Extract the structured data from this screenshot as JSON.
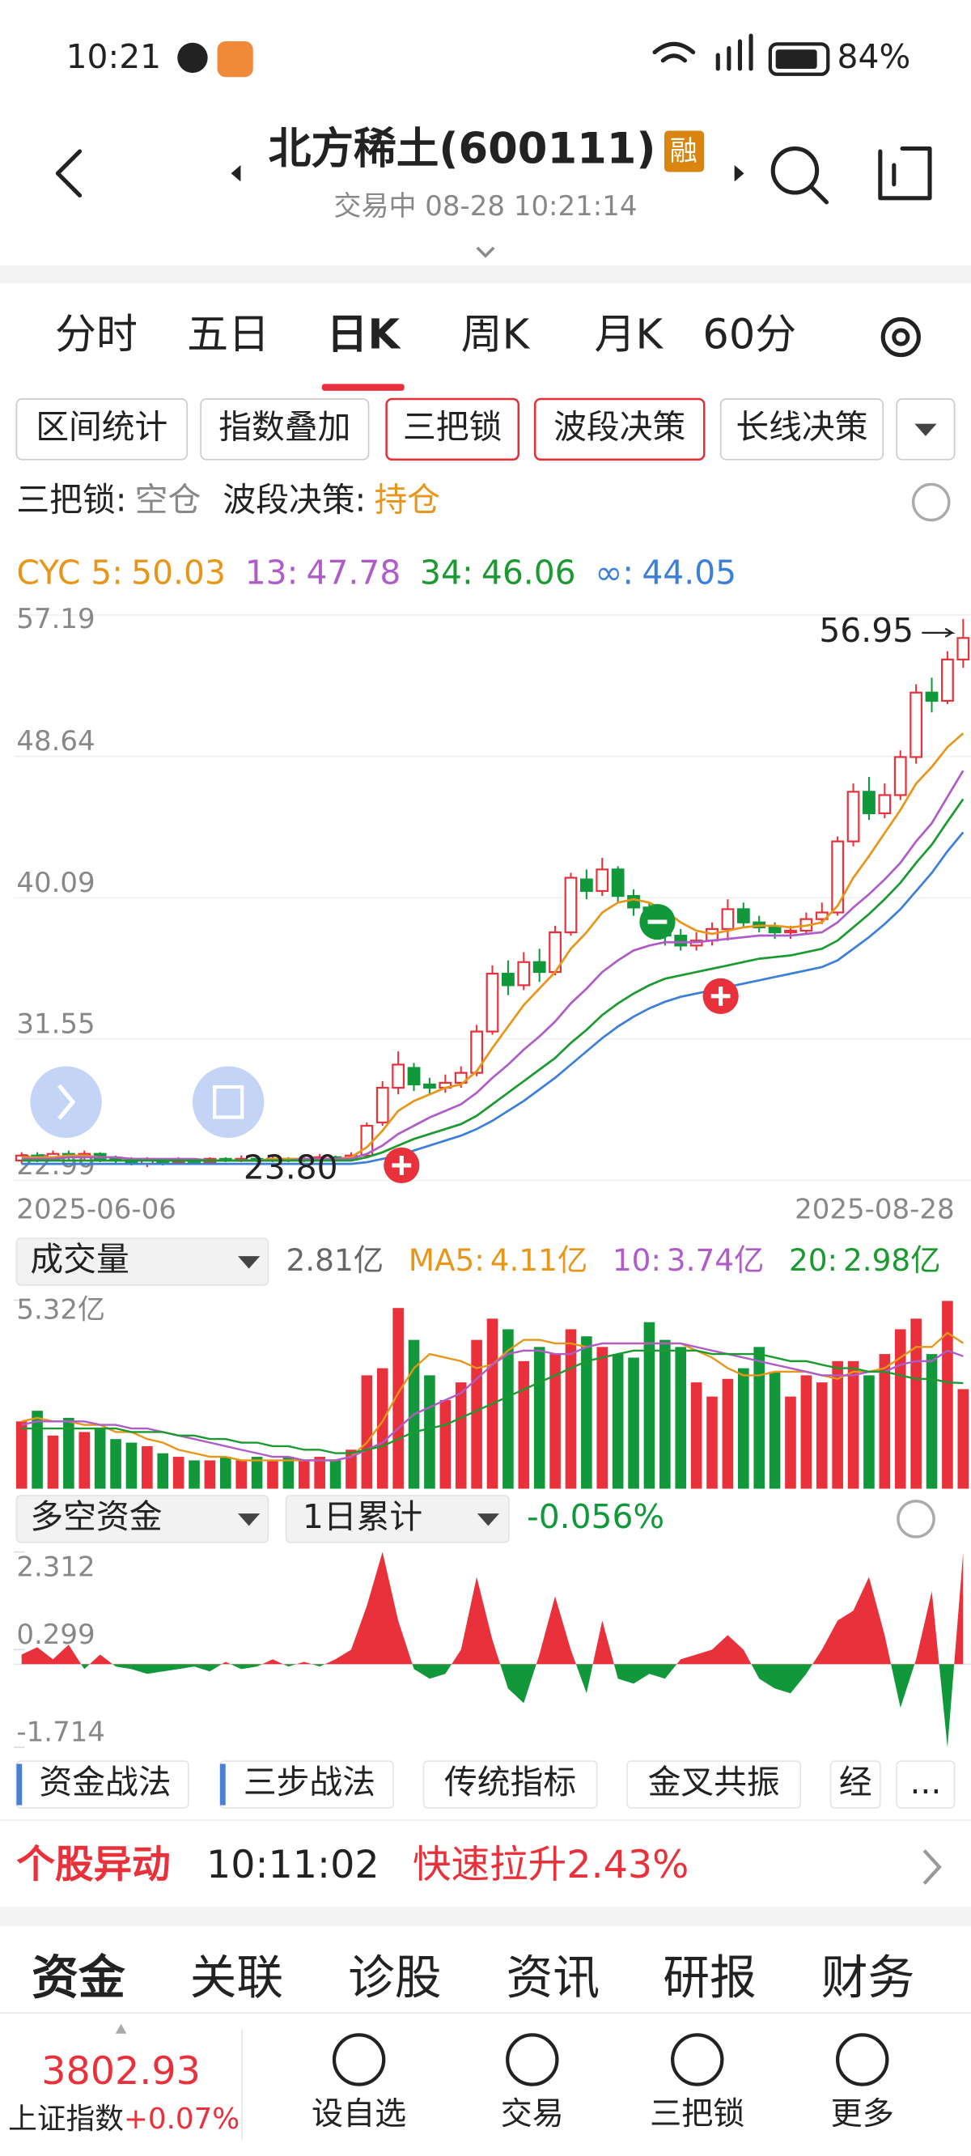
{
  "status_bar": {
    "time": "10:21",
    "battery": "84%"
  },
  "header": {
    "title": "北方稀土(600111)",
    "badge": "融",
    "subtitle": "交易中 08-28 10:21:14"
  },
  "period_tabs": [
    "分时",
    "五日",
    "日K",
    "周K",
    "月K",
    "60分"
  ],
  "active_period": 2,
  "tool_buttons": [
    {
      "label": "区间统计",
      "highlighted": false
    },
    {
      "label": "指数叠加",
      "highlighted": false
    },
    {
      "label": "三把锁",
      "highlighted": true
    },
    {
      "label": "波段决策",
      "highlighted": true
    },
    {
      "label": "长线决策",
      "highlighted": false
    }
  ],
  "signals": [
    {
      "label": "三把锁:",
      "value": "空仓"
    },
    {
      "label": "波段决策:",
      "value": "持仓"
    }
  ],
  "chart_data": [
    {
      "type": "candlestick",
      "categories": [
        "2025-06-06",
        null,
        null,
        null,
        null,
        null,
        null,
        null,
        null,
        null,
        null,
        null,
        null,
        null,
        null,
        null,
        null,
        null,
        null,
        null,
        null,
        null,
        null,
        null,
        null,
        null,
        null,
        null,
        null,
        null,
        null,
        null,
        null,
        null,
        null,
        null,
        null,
        null,
        null,
        null,
        null,
        null,
        null,
        null,
        null,
        null,
        null,
        null,
        null,
        null,
        null,
        null,
        null,
        null,
        null,
        null,
        null,
        null,
        null,
        null,
        "2025-08-28"
      ],
      "candles": [
        [
          24.2,
          24.5,
          24.7,
          24.0
        ],
        [
          24.5,
          24.3,
          24.7,
          24.1
        ],
        [
          24.3,
          24.6,
          24.8,
          24.2
        ],
        [
          24.6,
          24.4,
          24.8,
          24.2
        ],
        [
          24.4,
          24.6,
          24.8,
          24.2
        ],
        [
          24.6,
          24.3,
          24.7,
          24.1
        ],
        [
          24.3,
          24.2,
          24.5,
          24.0
        ],
        [
          24.2,
          24.0,
          24.4,
          23.9
        ],
        [
          24.0,
          24.2,
          24.4,
          23.8
        ],
        [
          24.2,
          24.1,
          24.3,
          23.9
        ],
        [
          24.1,
          24.2,
          24.4,
          24.0
        ],
        [
          24.2,
          24.1,
          24.3,
          24.0
        ],
        [
          24.1,
          24.3,
          24.4,
          24.0
        ],
        [
          24.3,
          24.2,
          24.4,
          24.1
        ],
        [
          24.2,
          24.3,
          24.5,
          24.1
        ],
        [
          24.3,
          24.2,
          24.4,
          24.1
        ],
        [
          24.2,
          24.3,
          24.5,
          24.1
        ],
        [
          24.3,
          24.2,
          24.4,
          24.1
        ],
        [
          24.2,
          24.3,
          24.5,
          24.1
        ],
        [
          24.3,
          24.4,
          24.6,
          24.2
        ],
        [
          24.4,
          24.3,
          24.5,
          24.2
        ],
        [
          24.3,
          24.5,
          24.7,
          24.2
        ],
        [
          24.5,
          26.3,
          26.5,
          24.4
        ],
        [
          26.5,
          28.6,
          29.0,
          26.3
        ],
        [
          28.6,
          30.0,
          30.8,
          28.2
        ],
        [
          29.8,
          28.8,
          30.1,
          28.4
        ],
        [
          28.8,
          28.6,
          29.2,
          28.2
        ],
        [
          28.6,
          28.9,
          29.4,
          28.3
        ],
        [
          28.9,
          29.5,
          29.9,
          28.6
        ],
        [
          29.5,
          32.0,
          32.4,
          29.3
        ],
        [
          32.0,
          35.5,
          36.0,
          31.8
        ],
        [
          35.5,
          34.8,
          36.3,
          34.2
        ],
        [
          34.8,
          36.2,
          36.8,
          34.5
        ],
        [
          36.2,
          35.6,
          37.0,
          35.0
        ],
        [
          35.6,
          38.0,
          38.4,
          35.4
        ],
        [
          38.0,
          41.3,
          41.6,
          37.8
        ],
        [
          41.2,
          40.5,
          41.8,
          40.0
        ],
        [
          40.5,
          41.8,
          42.5,
          40.2
        ],
        [
          41.8,
          40.2,
          42.0,
          39.8
        ],
        [
          40.2,
          39.5,
          40.6,
          39.0
        ],
        [
          39.5,
          38.6,
          39.8,
          38.2
        ],
        [
          38.6,
          37.8,
          39.0,
          37.2
        ],
        [
          37.8,
          37.2,
          38.2,
          36.9
        ],
        [
          37.2,
          37.5,
          38.0,
          36.9
        ],
        [
          37.5,
          38.2,
          38.6,
          37.2
        ],
        [
          38.2,
          39.4,
          40.0,
          37.5
        ],
        [
          39.4,
          38.6,
          39.8,
          38.3
        ],
        [
          38.6,
          38.3,
          39.0,
          38.0
        ],
        [
          38.3,
          38.0,
          38.6,
          37.6
        ],
        [
          38.0,
          38.1,
          38.4,
          37.6
        ],
        [
          38.1,
          38.8,
          39.2,
          37.9
        ],
        [
          38.8,
          39.2,
          39.8,
          38.5
        ],
        [
          39.2,
          43.5,
          43.8,
          39.0
        ],
        [
          43.5,
          46.5,
          47.0,
          43.2
        ],
        [
          46.5,
          45.2,
          47.4,
          44.8
        ],
        [
          45.2,
          46.3,
          47.0,
          44.9
        ],
        [
          46.3,
          48.6,
          49.0,
          46.0
        ],
        [
          48.6,
          52.5,
          53.0,
          48.2
        ],
        [
          52.5,
          52.0,
          53.4,
          51.3
        ],
        [
          52.0,
          54.5,
          55.0,
          51.8
        ],
        [
          54.5,
          55.8,
          56.95,
          54.0
        ]
      ],
      "low_label": "23.80",
      "up_color": "#e8313a",
      "down_color": "#11983a",
      "ylim": [
        22.99,
        57.19
      ],
      "yticks": [
        22.99,
        31.55,
        40.09,
        48.64,
        57.19
      ],
      "grid": true,
      "lines": [
        {
          "name": "CYC 5:",
          "color": "#e8961a",
          "values": [
            24.4,
            24.4,
            24.4,
            24.5,
            24.5,
            24.4,
            24.4,
            24.3,
            24.3,
            24.2,
            24.2,
            24.2,
            24.2,
            24.2,
            24.2,
            24.2,
            24.3,
            24.3,
            24.3,
            24.3,
            24.3,
            24.4,
            25.0,
            26.0,
            27.2,
            27.8,
            28.2,
            28.6,
            28.8,
            29.6,
            31.0,
            32.3,
            33.6,
            34.6,
            35.6,
            37.0,
            38.0,
            39.2,
            39.8,
            40.0,
            39.8,
            39.3,
            38.6,
            38.1,
            37.9,
            38.1,
            38.3,
            38.4,
            38.4,
            38.3,
            38.4,
            38.6,
            39.6,
            41.3,
            42.6,
            44.0,
            45.4,
            47.0,
            48.0,
            49.2,
            50.03
          ]
        },
        {
          "name": "13:",
          "color": "#b05cc8",
          "values": [
            24.3,
            24.3,
            24.3,
            24.4,
            24.4,
            24.4,
            24.4,
            24.3,
            24.3,
            24.3,
            24.3,
            24.3,
            24.2,
            24.2,
            24.2,
            24.2,
            24.2,
            24.2,
            24.3,
            24.3,
            24.3,
            24.3,
            24.6,
            25.1,
            25.8,
            26.3,
            26.8,
            27.2,
            27.6,
            28.3,
            29.2,
            30.0,
            30.9,
            31.7,
            32.6,
            33.7,
            34.6,
            35.6,
            36.3,
            36.9,
            37.2,
            37.4,
            37.4,
            37.4,
            37.5,
            37.6,
            37.7,
            37.8,
            37.8,
            37.8,
            37.9,
            38.0,
            38.6,
            39.5,
            40.3,
            41.2,
            42.2,
            43.5,
            44.6,
            46.2,
            47.78
          ]
        },
        {
          "name": "34:",
          "color": "#1a9a30",
          "values": [
            24.2,
            24.2,
            24.2,
            24.2,
            24.2,
            24.2,
            24.2,
            24.2,
            24.2,
            24.2,
            24.2,
            24.2,
            24.2,
            24.2,
            24.2,
            24.2,
            24.2,
            24.2,
            24.2,
            24.2,
            24.2,
            24.2,
            24.4,
            24.7,
            25.1,
            25.5,
            25.8,
            26.1,
            26.4,
            26.9,
            27.6,
            28.3,
            29.0,
            29.7,
            30.4,
            31.3,
            32.1,
            33.0,
            33.7,
            34.3,
            34.8,
            35.2,
            35.4,
            35.6,
            35.8,
            36.0,
            36.2,
            36.4,
            36.5,
            36.6,
            36.8,
            37.0,
            37.5,
            38.3,
            39.1,
            40.0,
            41.0,
            42.2,
            43.3,
            44.7,
            46.06
          ]
        },
        {
          "name": "∞:",
          "color": "#3b7fd9",
          "values": [
            24.0,
            24.0,
            24.0,
            24.0,
            24.0,
            24.0,
            24.0,
            24.0,
            24.0,
            24.0,
            24.0,
            24.0,
            24.0,
            24.0,
            24.0,
            24.0,
            24.0,
            24.0,
            24.0,
            24.0,
            24.0,
            24.0,
            24.1,
            24.3,
            24.5,
            24.8,
            25.1,
            25.4,
            25.7,
            26.1,
            26.6,
            27.2,
            27.8,
            28.5,
            29.2,
            30.0,
            30.8,
            31.6,
            32.3,
            32.9,
            33.4,
            33.8,
            34.1,
            34.3,
            34.5,
            34.7,
            34.9,
            35.1,
            35.3,
            35.5,
            35.7,
            35.9,
            36.3,
            37.0,
            37.7,
            38.5,
            39.4,
            40.5,
            41.6,
            42.9,
            44.05
          ]
        }
      ]
    },
    {
      "type": "bar",
      "title": "成交量",
      "values": [
        1.9,
        2.2,
        1.5,
        2.0,
        1.6,
        1.7,
        1.4,
        1.3,
        1.2,
        1.0,
        0.9,
        0.8,
        0.8,
        0.9,
        0.8,
        0.9,
        0.8,
        0.9,
        0.8,
        0.9,
        0.8,
        1.1,
        3.2,
        3.4,
        5.1,
        4.2,
        3.2,
        2.5,
        3.0,
        4.2,
        4.8,
        4.5,
        3.6,
        4.0,
        3.8,
        4.5,
        4.3,
        4.0,
        3.8,
        3.7,
        4.7,
        4.2,
        4.0,
        3.0,
        2.6,
        3.1,
        3.4,
        4.0,
        3.3,
        2.6,
        3.2,
        3.0,
        3.6,
        3.6,
        3.2,
        3.8,
        4.5,
        4.8,
        3.8,
        5.3,
        2.81
      ],
      "current_label": "2.81亿",
      "ylim": [
        0,
        5.32
      ],
      "yticks": [
        {
          "value": 5.32,
          "label": "5.32亿"
        }
      ],
      "series": [
        {
          "name": "MA5:",
          "color": "#e8961a",
          "latest_label": "4.11亿",
          "values": [
            1.9,
            2.0,
            1.9,
            1.9,
            1.8,
            1.8,
            1.6,
            1.6,
            1.4,
            1.3,
            1.1,
            1.0,
            0.9,
            0.9,
            0.8,
            0.8,
            0.8,
            0.8,
            0.8,
            0.8,
            0.8,
            0.9,
            1.3,
            1.9,
            2.7,
            3.4,
            3.8,
            3.7,
            3.6,
            3.4,
            3.5,
            3.9,
            4.2,
            4.2,
            4.1,
            4.1,
            4.0,
            4.1,
            4.1,
            4.1,
            4.1,
            4.1,
            4.1,
            3.9,
            3.7,
            3.4,
            3.2,
            3.2,
            3.3,
            3.3,
            3.3,
            3.2,
            3.1,
            3.3,
            3.3,
            3.4,
            3.7,
            4.0,
            4.0,
            4.4,
            4.11
          ]
        },
        {
          "name": "10:",
          "color": "#b05cc8",
          "latest_label": "3.74亿",
          "values": [
            1.8,
            1.9,
            1.9,
            1.9,
            1.9,
            1.8,
            1.8,
            1.7,
            1.7,
            1.6,
            1.5,
            1.4,
            1.3,
            1.2,
            1.1,
            1.0,
            0.9,
            0.9,
            0.8,
            0.8,
            0.8,
            0.9,
            1.1,
            1.3,
            1.7,
            2.1,
            2.3,
            2.5,
            2.7,
            3.1,
            3.5,
            3.8,
            3.9,
            3.9,
            3.8,
            3.8,
            4.0,
            4.1,
            4.1,
            4.1,
            4.1,
            4.1,
            4.1,
            4.0,
            3.9,
            3.8,
            3.7,
            3.6,
            3.5,
            3.4,
            3.3,
            3.2,
            3.2,
            3.2,
            3.3,
            3.3,
            3.5,
            3.6,
            3.6,
            3.9,
            3.74
          ]
        },
        {
          "name": "20:",
          "color": "#1a9a30",
          "latest_label": "2.98亿",
          "values": [
            1.7,
            1.7,
            1.7,
            1.7,
            1.7,
            1.7,
            1.7,
            1.6,
            1.6,
            1.6,
            1.5,
            1.5,
            1.4,
            1.4,
            1.3,
            1.3,
            1.2,
            1.2,
            1.1,
            1.1,
            1.0,
            1.0,
            1.1,
            1.2,
            1.4,
            1.6,
            1.7,
            1.8,
            2.0,
            2.2,
            2.4,
            2.6,
            2.8,
            3.0,
            3.2,
            3.4,
            3.6,
            3.7,
            3.8,
            3.9,
            3.9,
            3.9,
            3.9,
            3.9,
            3.8,
            3.8,
            3.8,
            3.8,
            3.7,
            3.6,
            3.6,
            3.5,
            3.4,
            3.4,
            3.3,
            3.3,
            3.2,
            3.1,
            3.1,
            3.0,
            2.98
          ]
        }
      ]
    },
    {
      "type": "area",
      "title": "多空资金",
      "mode": "1日累计",
      "change_label": "-0.056%",
      "values": [
        0.2,
        0.35,
        0.1,
        0.4,
        -0.1,
        0.2,
        -0.05,
        -0.1,
        -0.2,
        -0.15,
        -0.1,
        -0.05,
        -0.15,
        0.05,
        -0.1,
        -0.05,
        0.1,
        -0.05,
        0.05,
        -0.05,
        0.1,
        0.3,
        1.2,
        2.312,
        0.9,
        -0.1,
        -0.3,
        -0.2,
        0.3,
        1.8,
        0.5,
        -0.5,
        -0.8,
        0.2,
        1.4,
        0.3,
        -0.6,
        0.9,
        -0.3,
        -0.4,
        -0.2,
        -0.3,
        0.1,
        0.2,
        0.3,
        0.6,
        0.3,
        -0.3,
        -0.5,
        -0.6,
        -0.2,
        0.3,
        0.9,
        1.1,
        1.8,
        0.6,
        -0.9,
        0.1,
        1.5,
        -1.714,
        2.3
      ],
      "positive_color": "#e8313a",
      "negative_color": "#11983a",
      "ylim": [
        -1.714,
        2.312
      ],
      "yticks": [
        2.312,
        0.299,
        -1.714
      ]
    }
  ],
  "indicator_tabs": [
    "资金战法",
    "三步战法",
    "传统指标",
    "金叉共振",
    "经",
    "..."
  ],
  "alert": {
    "title": "个股异动",
    "time": "10:11:02",
    "text": "快速拉升2.43%"
  },
  "section_tabs": [
    "资金",
    "关联",
    "诊股",
    "资讯",
    "研报",
    "财务"
  ],
  "footer": {
    "index_value": "3802.93",
    "index_name": "上证指数",
    "index_change": "+0.07%",
    "nav": [
      "设自选",
      "交易",
      "三把锁",
      "更多"
    ]
  }
}
